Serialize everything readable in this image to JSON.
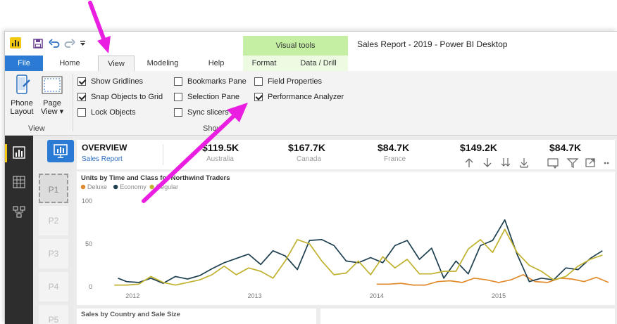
{
  "title_bar": {
    "app_title": "Sales Report - 2019 - Power BI Desktop",
    "contextual_group": "Visual tools",
    "qat_icons": [
      "powerbi-logo-icon",
      "save-icon",
      "undo-icon",
      "redo-icon",
      "customize-qat-icon"
    ]
  },
  "tabs": [
    "File",
    "Home",
    "View",
    "Modeling",
    "Help",
    "Format",
    "Data / Drill"
  ],
  "ribbon": {
    "view_group": {
      "phone_layout": [
        "Phone",
        "Layout"
      ],
      "page_view": [
        "Page",
        "View ▾"
      ],
      "label": "View"
    },
    "show_group": {
      "label": "Show",
      "checkboxes": [
        {
          "label": "Show Gridlines",
          "checked": true
        },
        {
          "label": "Snap Objects to Grid",
          "checked": true
        },
        {
          "label": "Lock Objects",
          "checked": false
        },
        {
          "label": "Bookmarks Pane",
          "checked": false
        },
        {
          "label": "Selection Pane",
          "checked": false
        },
        {
          "label": "Sync slicers",
          "checked": false
        },
        {
          "label": "Field Properties",
          "checked": false
        },
        {
          "label": "Performance Analyzer",
          "checked": true
        }
      ]
    }
  },
  "left_rail": [
    "report-view-icon",
    "data-view-icon",
    "model-view-icon"
  ],
  "pages": [
    "P1",
    "P2",
    "P3",
    "P4",
    "P5"
  ],
  "kpis": {
    "overview_title": "OVERVIEW",
    "overview_subtitle": "Sales Report",
    "cards": [
      {
        "value": "$119.5K",
        "label": "Australia"
      },
      {
        "value": "$167.7K",
        "label": "Canada"
      },
      {
        "value": "$84.7K",
        "label": "France"
      },
      {
        "value": "$149.2K",
        "label": ""
      },
      {
        "value": "$84.7K",
        "label": ""
      }
    ]
  },
  "visual_header_icons": [
    "drill-up-icon",
    "drill-down-icon",
    "expand-all-icon",
    "expand-next-level-icon",
    "focus-mode-icon",
    "filter-icon",
    "more-options-icon"
  ],
  "chart_data": {
    "type": "line",
    "title": "Units by Time and Class for Northwind Traders",
    "xlabel": "",
    "ylabel": "",
    "ylim": [
      0,
      100
    ],
    "yticks": [
      "100",
      "50",
      "0"
    ],
    "xticks": [
      "2012",
      "2013",
      "2014",
      "2015"
    ],
    "x_range": [
      2011.75,
      2015.9
    ],
    "legend_placement": "top-left",
    "series": [
      {
        "name": "Deluxe",
        "color": "#e08a2b",
        "x": [
          2014.0,
          2014.1,
          2014.2,
          2014.3,
          2014.4,
          2014.5,
          2014.6,
          2014.7,
          2014.8,
          2014.9,
          2015.0,
          2015.1,
          2015.2,
          2015.3,
          2015.4,
          2015.5,
          2015.6,
          2015.7,
          2015.8,
          2015.9
        ],
        "y": [
          3,
          3,
          4,
          2,
          2,
          6,
          7,
          5,
          10,
          8,
          5,
          8,
          14,
          6,
          5,
          10,
          9,
          6,
          11,
          5
        ]
      },
      {
        "name": "Economy",
        "color": "#1d3f4f",
        "x": [
          2011.88,
          2011.95,
          2012.05,
          2012.15,
          2012.25,
          2012.35,
          2012.45,
          2012.55,
          2012.65,
          2012.75,
          2012.85,
          2012.95,
          2013.05,
          2013.15,
          2013.25,
          2013.35,
          2013.45,
          2013.55,
          2013.65,
          2013.75,
          2013.85,
          2013.95,
          2014.05,
          2014.15,
          2014.25,
          2014.35,
          2014.45,
          2014.55,
          2014.65,
          2014.75,
          2014.85,
          2014.95,
          2015.05,
          2015.15,
          2015.25,
          2015.35,
          2015.45,
          2015.55,
          2015.65,
          2015.75,
          2015.85
        ],
        "y": [
          10,
          6,
          5,
          10,
          4,
          12,
          9,
          13,
          21,
          28,
          33,
          38,
          26,
          42,
          36,
          20,
          54,
          55,
          48,
          30,
          28,
          34,
          28,
          48,
          54,
          32,
          45,
          10,
          30,
          15,
          48,
          54,
          78,
          38,
          6,
          10,
          8,
          22,
          20,
          33,
          42
        ]
      },
      {
        "name": "Regular",
        "color": "#c0b12e",
        "x": [
          2011.85,
          2011.95,
          2012.05,
          2012.15,
          2012.25,
          2012.35,
          2012.45,
          2012.55,
          2012.65,
          2012.75,
          2012.85,
          2012.95,
          2013.05,
          2013.15,
          2013.25,
          2013.35,
          2013.45,
          2013.55,
          2013.65,
          2013.75,
          2013.85,
          2013.95,
          2014.05,
          2014.15,
          2014.25,
          2014.35,
          2014.45,
          2014.55,
          2014.65,
          2014.75,
          2014.85,
          2014.95,
          2015.05,
          2015.15,
          2015.25,
          2015.35,
          2015.45,
          2015.55,
          2015.65,
          2015.75,
          2015.85
        ],
        "y": [
          2,
          2,
          3,
          12,
          5,
          2,
          5,
          8,
          14,
          24,
          14,
          22,
          18,
          10,
          30,
          55,
          50,
          30,
          14,
          16,
          30,
          14,
          35,
          22,
          32,
          15,
          15,
          18,
          18,
          44,
          55,
          40,
          67,
          40,
          25,
          18,
          8,
          12,
          24,
          32,
          37
        ]
      }
    ]
  },
  "bottom_panel_title": "Sales by Country and Sale Size"
}
